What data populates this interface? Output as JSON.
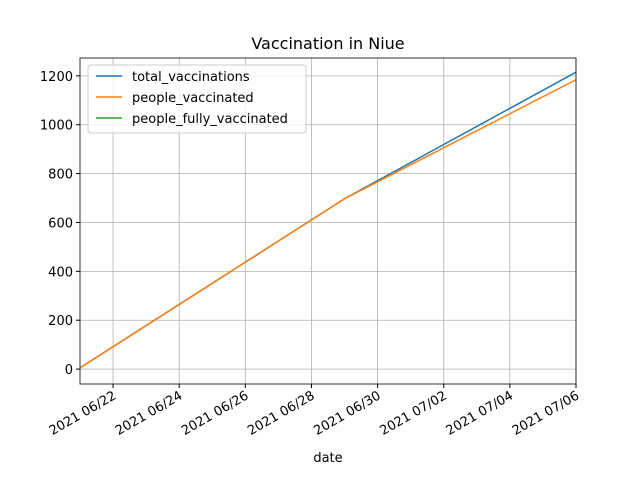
{
  "chart_data": {
    "type": "line",
    "title": "Vaccination in Niue",
    "xlabel": "date",
    "x": [
      "2021-06-21",
      "2021-06-29",
      "2021-07-06"
    ],
    "series": [
      {
        "name": "total_vaccinations",
        "color": "#1f77b4",
        "values": [
          5,
          697,
          1215
        ]
      },
      {
        "name": "people_vaccinated",
        "color": "#ff7f0e",
        "values": [
          5,
          697,
          1184
        ]
      },
      {
        "name": "people_fully_vaccinated",
        "color": "#2ca02c",
        "values": [
          null,
          null,
          null
        ]
      }
    ],
    "xlim": [
      "2021-06-21",
      "2021-07-06"
    ],
    "xticks": [
      {
        "value": "2021-06-22",
        "label": "2021 06/22"
      },
      {
        "value": "2021-06-24",
        "label": "2021 06/24"
      },
      {
        "value": "2021-06-26",
        "label": "2021 06/26"
      },
      {
        "value": "2021-06-28",
        "label": "2021 06/28"
      },
      {
        "value": "2021-06-30",
        "label": "2021 06/30"
      },
      {
        "value": "2021-07-02",
        "label": "2021 07/02"
      },
      {
        "value": "2021-07-04",
        "label": "2021 07/04"
      },
      {
        "value": "2021-07-06",
        "label": "2021 07/06"
      }
    ],
    "ylim": [
      -61,
      1273
    ],
    "yticks": [
      0,
      200,
      400,
      600,
      800,
      1000,
      1200
    ],
    "grid": true,
    "legend": "upper left"
  }
}
